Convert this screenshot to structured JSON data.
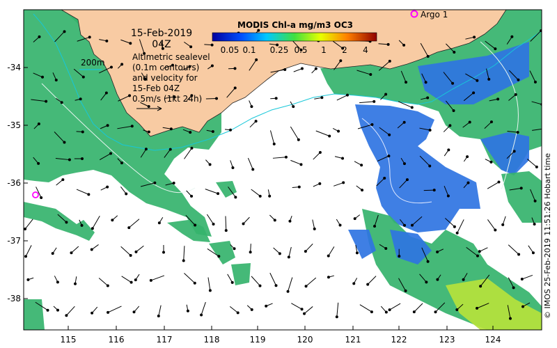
{
  "map": {
    "date_title": "15-Feb-2019",
    "time_title": "04Z",
    "contour_label": "200m",
    "description_lines": [
      "Altimetric sealevel",
      "(0.1m contours)",
      "and velocity for",
      "15-Feb 04Z",
      "0.5m/s (1kt 24h)"
    ],
    "float_label": "Argo 1",
    "credit": "© IMOS 25-Feb-2019 11:51:26 Hobart time",
    "colorbar": {
      "title": "MODIS Chl-a mg/m3 OC3",
      "ticks": [
        "0.05",
        "0.1",
        "0.25",
        "0.5",
        "1",
        "2",
        "4"
      ]
    },
    "x_ticks": [
      "115",
      "116",
      "117",
      "118",
      "119",
      "120",
      "121",
      "122",
      "123",
      "124"
    ],
    "y_ticks": [
      "-34",
      "-35",
      "-36",
      "-37",
      "-38"
    ],
    "colors": {
      "land": "#f8cba3",
      "chl_green": "#35b36d",
      "chl_blue": "#2f74e2",
      "chl_yellowgreen": "#b6e23c",
      "contour": "#17c7d9",
      "float_marker": "#ff00ff"
    }
  }
}
